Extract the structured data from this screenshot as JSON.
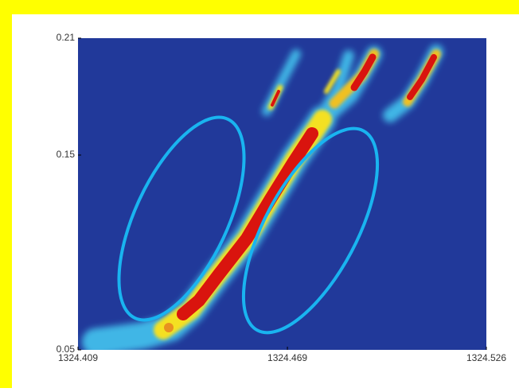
{
  "chart_data": {
    "type": "heatmap",
    "xlim": [
      1324.409,
      1324.526
    ],
    "xticks": [
      1324.409,
      1324.469,
      1324.526
    ],
    "ylim": [
      0.05,
      0.21
    ],
    "yticks": [
      0.05,
      0.15,
      0.21
    ]
  }
}
